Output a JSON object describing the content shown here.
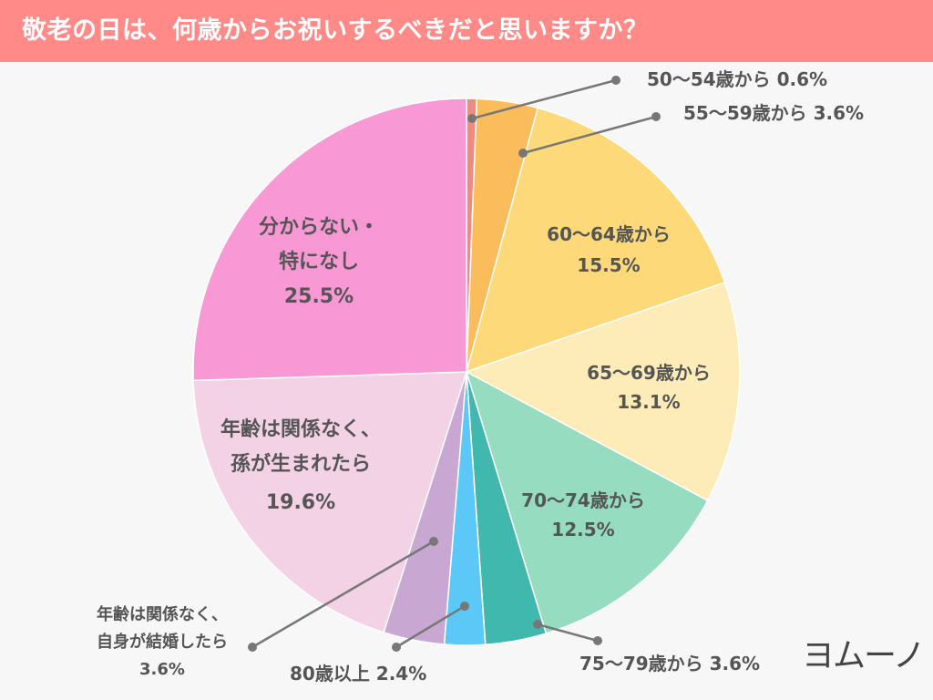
{
  "header": {
    "title": "敬老の日は、何歳からお祝いするべきだと思いますか？"
  },
  "logo": {
    "text": "ヨムーノ"
  },
  "colors": {
    "header": "#ff8a87",
    "background": "#f7f7f7"
  },
  "chart_data": {
    "type": "pie",
    "title": "敬老の日は、何歳からお祝いするべきだと思いますか？",
    "start": "top",
    "direction": "clockwise",
    "slices": [
      {
        "label": [
          "50〜54歳から 0.6%"
        ],
        "value": 0.6,
        "color": "#f08a80",
        "label_position": "outside"
      },
      {
        "label": [
          "55〜59歳から 3.6%"
        ],
        "value": 3.6,
        "color": "#fbbd5c",
        "label_position": "outside"
      },
      {
        "label": [
          "60〜64歳から",
          "15.5%"
        ],
        "value": 15.5,
        "color": "#fdd97a",
        "label_position": "inside"
      },
      {
        "label": [
          "65〜69歳から",
          "13.1%"
        ],
        "value": 13.1,
        "color": "#feecb8",
        "label_position": "inside"
      },
      {
        "label": [
          "70〜74歳から",
          "12.5%"
        ],
        "value": 12.5,
        "color": "#96dcc0",
        "label_position": "inside"
      },
      {
        "label": [
          "75〜79歳から 3.6%"
        ],
        "value": 3.6,
        "color": "#40b8ad",
        "label_position": "outside"
      },
      {
        "label": [
          "80歳以上 2.4%"
        ],
        "value": 2.4,
        "color": "#5bc8f8",
        "label_position": "outside"
      },
      {
        "label": [
          "年齢は関係なく、",
          "自身が結婚したら",
          "3.6%"
        ],
        "value": 3.6,
        "color": "#c8a8d2",
        "label_position": "outside"
      },
      {
        "label": [
          "年齢は関係なく、",
          "孫が生まれたら",
          "19.6%"
        ],
        "value": 19.6,
        "color": "#f4d2e6",
        "label_position": "inside"
      },
      {
        "label": [
          "分からない・",
          "特になし",
          "25.5%"
        ],
        "value": 25.5,
        "color": "#f898d4",
        "label_position": "inside"
      }
    ],
    "unit": "%"
  }
}
